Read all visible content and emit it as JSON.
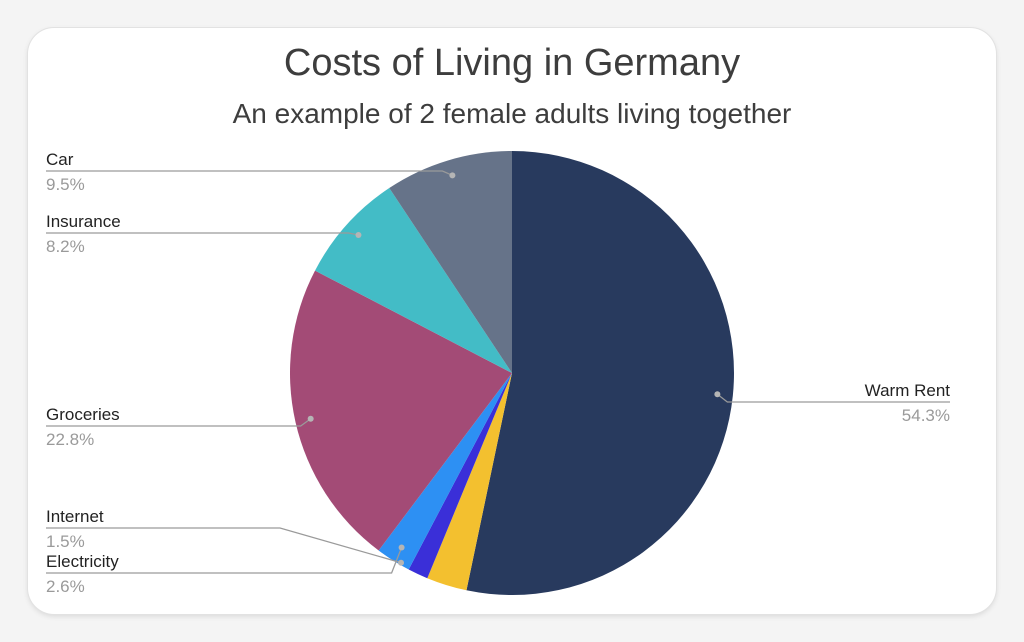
{
  "chart_data": {
    "type": "pie",
    "title": "Costs of Living in Germany",
    "subtitle": "An example of 2 female adults living together",
    "slices": [
      {
        "label": "Warm Rent",
        "value": 54.3,
        "pct_label": "54.3%",
        "color": "#283a5e"
      },
      {
        "label": "",
        "value": 3.0,
        "pct_label": "",
        "color": "#f3c02f"
      },
      {
        "label": "",
        "value": 1.5,
        "pct_label": "",
        "color": "#3a2fd8"
      },
      {
        "label": "Electricity",
        "value": 2.6,
        "pct_label": "2.6%",
        "color": "#2d90f3"
      },
      {
        "label": "Groceries",
        "value": 22.8,
        "pct_label": "22.8%",
        "color": "#a34b76"
      },
      {
        "label": "Insurance",
        "value": 8.2,
        "pct_label": "8.2%",
        "color": "#43bcc6"
      },
      {
        "label": "Car",
        "value": 9.5,
        "pct_label": "9.5%",
        "color": "#667389"
      }
    ],
    "extra_labels": [
      {
        "label": "Internet",
        "pct_label": "1.5%"
      }
    ],
    "legend": "none"
  }
}
